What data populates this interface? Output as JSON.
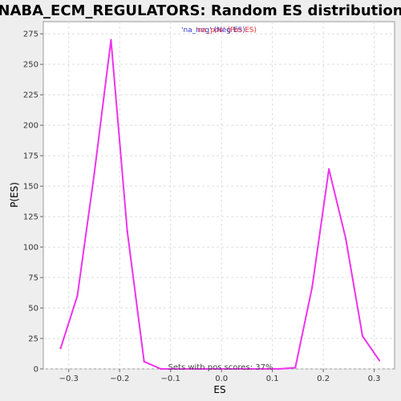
{
  "chart_data": {
    "type": "line",
    "title": "NABA_ECM_REGULATORS: Random ES distribution",
    "xlabel": "ES",
    "ylabel": "P(ES)",
    "xlim": [
      -0.35,
      0.34
    ],
    "ylim": [
      0,
      285
    ],
    "xticks": [
      -0.3,
      -0.2,
      -0.1,
      0.0,
      0.1,
      0.2,
      0.3
    ],
    "xtick_labels": [
      "−0.3",
      "−0.2",
      "−0.1",
      "0.0",
      "0.1",
      "0.2",
      "0.3"
    ],
    "yticks": [
      0,
      25,
      50,
      75,
      100,
      125,
      150,
      175,
      200,
      225,
      250,
      275
    ],
    "ytick_labels": [
      "0",
      "25",
      "50",
      "75",
      "100",
      "125",
      "150",
      "175",
      "200",
      "225",
      "250",
      "275"
    ],
    "grid": true,
    "legend": {
      "placement": "top-center",
      "entries": [
        {
          "label": "'na_neg' (Neg ES)",
          "color": "#3333cc"
        },
        {
          "label": "'na_pos' (Pos ES)",
          "color": "#ee3333"
        }
      ]
    },
    "annotation": "Sets with pos scores: 37%",
    "series": [
      {
        "color": "#ee33ee",
        "x": [
          -0.316,
          -0.283,
          -0.25,
          -0.217,
          -0.185,
          -0.152,
          -0.119,
          -0.086,
          -0.053,
          -0.02,
          0.013,
          0.046,
          0.079,
          0.112,
          0.145,
          0.178,
          0.211,
          0.244,
          0.277,
          0.31
        ],
        "y": [
          17,
          60,
          160,
          270,
          113,
          6,
          0,
          0,
          0,
          0,
          0,
          0,
          0,
          0,
          1,
          67,
          164,
          107,
          27,
          7
        ]
      }
    ]
  }
}
